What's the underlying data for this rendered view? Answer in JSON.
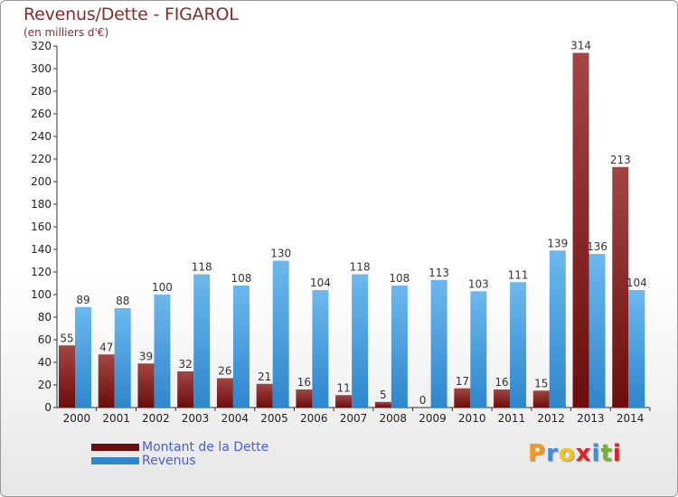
{
  "header": {
    "title": "Revenus/Dette - FIGAROL",
    "subtitle": "(en milliers d'€)"
  },
  "legend": {
    "debt_label": "Montant de la Dette",
    "revenue_label": "Revenus"
  },
  "logo": {
    "letters": [
      "P",
      "r",
      "o",
      "x",
      "i",
      "t",
      "i"
    ],
    "colors": [
      "#f29a1b",
      "#3d8fd8",
      "#f2c31b",
      "#d8262b",
      "#3d8fd8",
      "#72b52e",
      "#d8262b"
    ]
  },
  "colors": {
    "debt": "#6b0d0d",
    "debt_light": "#a24545",
    "revenue": "#2e86cc",
    "revenue_light": "#6cb8ee"
  },
  "chart_data": {
    "type": "bar",
    "title": "Revenus/Dette - FIGAROL",
    "subtitle": "(en milliers d'€)",
    "categories": [
      "2000",
      "2001",
      "2002",
      "2003",
      "2004",
      "2005",
      "2006",
      "2007",
      "2008",
      "2009",
      "2010",
      "2011",
      "2012",
      "2013",
      "2014"
    ],
    "series": [
      {
        "name": "Montant de la Dette",
        "values": [
          55,
          47,
          39,
          32,
          26,
          21,
          16,
          11,
          5,
          0,
          17,
          16,
          15,
          314,
          213
        ]
      },
      {
        "name": "Revenus",
        "values": [
          89,
          88,
          100,
          118,
          108,
          130,
          104,
          118,
          108,
          113,
          103,
          111,
          139,
          136,
          104
        ]
      }
    ],
    "ylim": [
      0,
      320
    ],
    "yticks": [
      0,
      20,
      40,
      60,
      80,
      100,
      120,
      140,
      160,
      180,
      200,
      220,
      240,
      260,
      280,
      300,
      320
    ],
    "grid": false,
    "legend_position": "bottom-left"
  }
}
